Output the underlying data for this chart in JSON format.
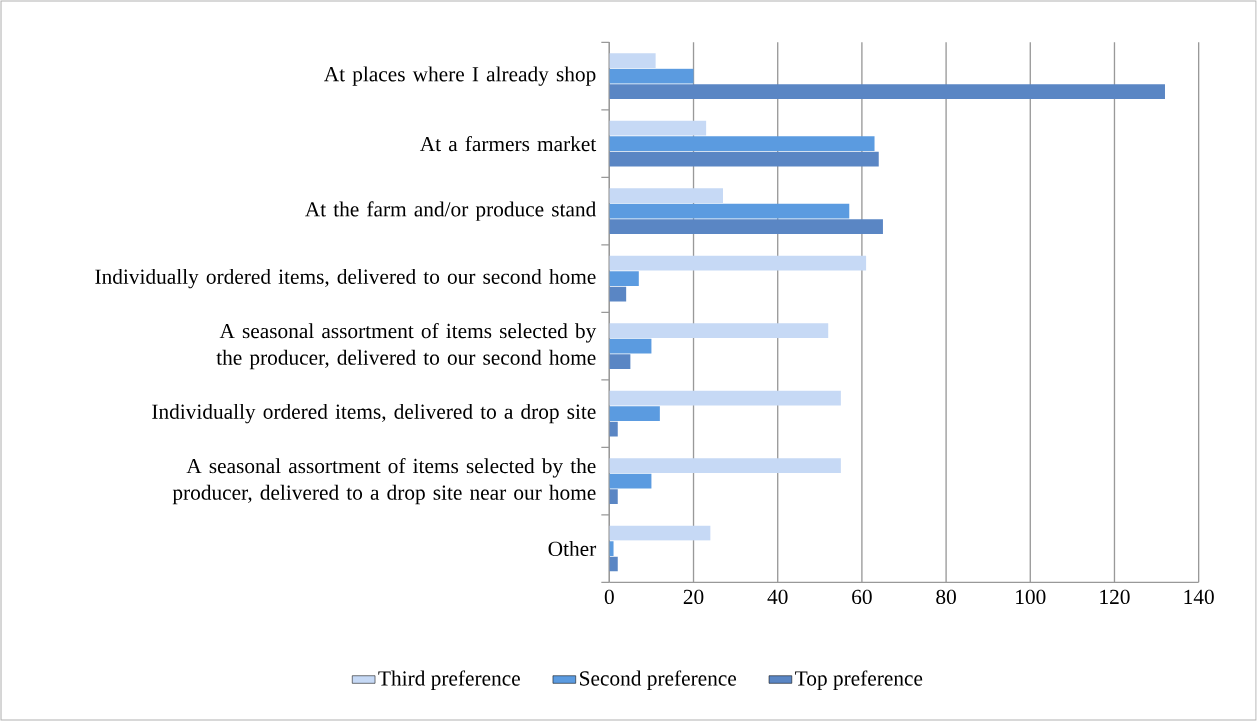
{
  "chart_data": {
    "type": "bar",
    "orientation": "horizontal",
    "categories": [
      "At places where I already shop",
      "At a farmers market",
      "At the farm and/or produce stand",
      "Individually ordered items, delivered to our second home",
      "A seasonal assortment of items selected by the producer, delivered to our second home",
      "Individually ordered items, delivered to a drop site",
      "A seasonal assortment of items selected by the producer, delivered to a drop site near our home",
      "Other"
    ],
    "series": [
      {
        "name": "Third preference",
        "color": "#c6d9f5",
        "values": [
          11,
          23,
          27,
          61,
          52,
          55,
          55,
          24
        ]
      },
      {
        "name": "Second preference",
        "color": "#5b9be0",
        "values": [
          20,
          63,
          57,
          7,
          10,
          12,
          10,
          1
        ]
      },
      {
        "name": "Top preference",
        "color": "#5a86c4",
        "values": [
          132,
          64,
          65,
          4,
          5,
          2,
          2,
          2
        ]
      }
    ],
    "xlim": [
      0,
      140
    ],
    "xticks": [
      0,
      20,
      40,
      60,
      80,
      100,
      120,
      140
    ],
    "grid": "x",
    "legend": "bottom"
  }
}
